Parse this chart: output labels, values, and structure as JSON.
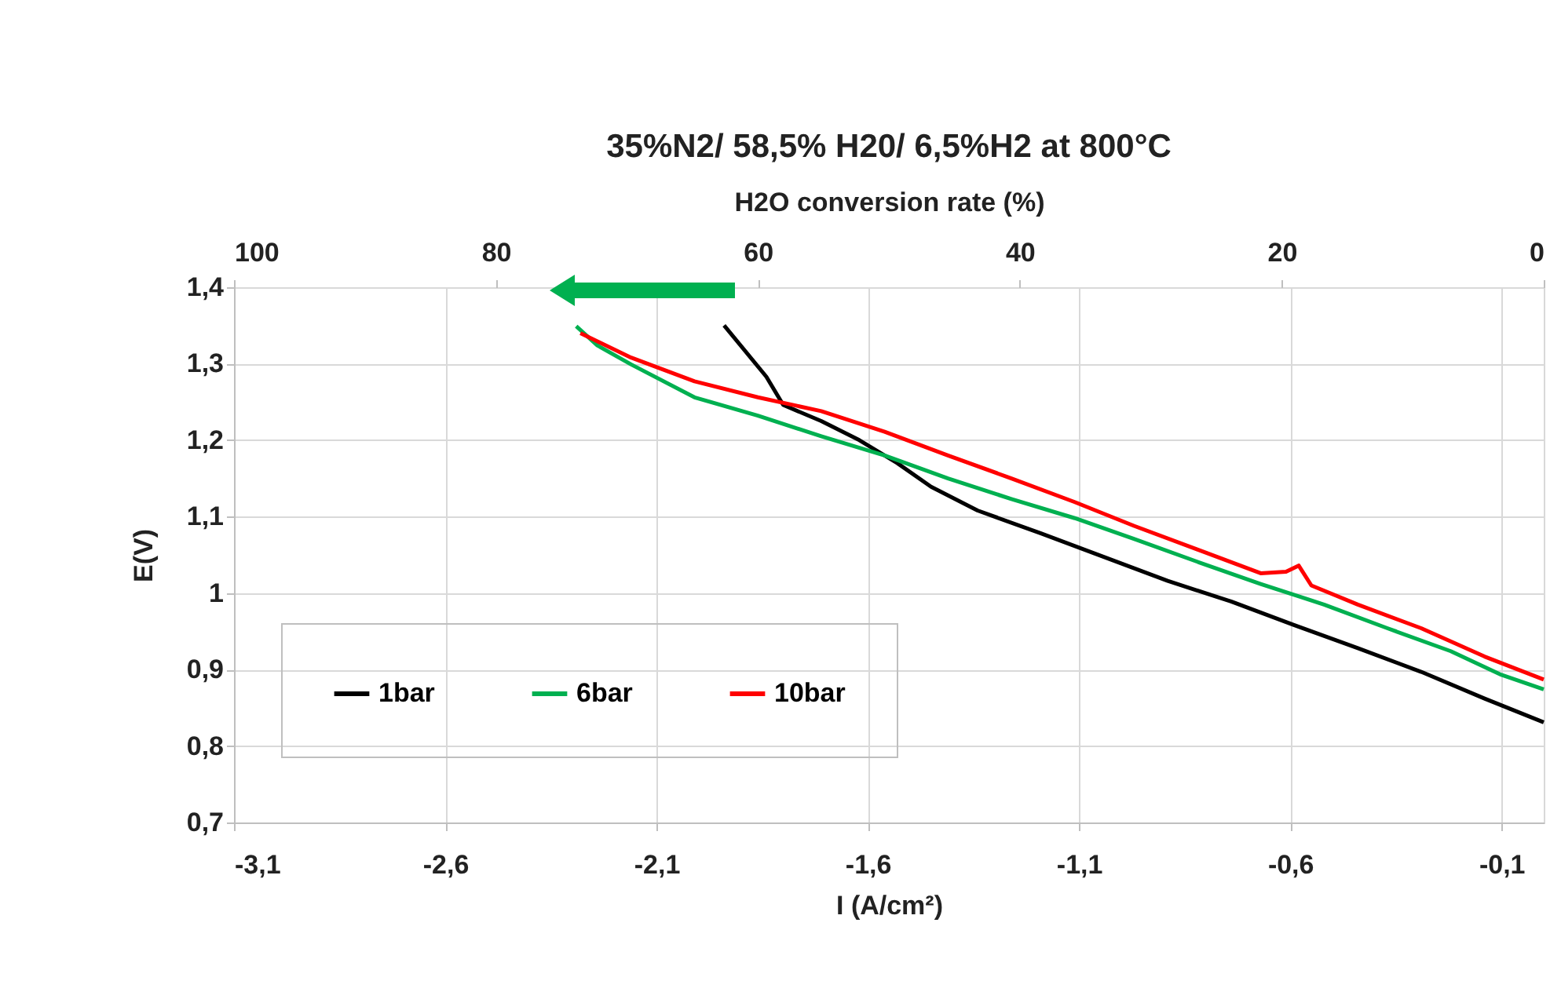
{
  "chart_data": {
    "type": "line",
    "title": "35%N2/ 58,5% H20/ 6,5%H2 at 800°C",
    "xlabel": "I (A/cm²)",
    "ylabel": "E(V)",
    "x2label": "H2O conversion rate (%)",
    "xlim": [
      -3.1,
      0
    ],
    "xticks": [
      {
        "value": -3.1,
        "label": "-3,1"
      },
      {
        "value": -2.6,
        "label": "-2,6"
      },
      {
        "value": -2.1,
        "label": "-2,1"
      },
      {
        "value": -1.6,
        "label": "-1,6"
      },
      {
        "value": -1.1,
        "label": "-1,1"
      },
      {
        "value": -0.6,
        "label": "-0,6"
      },
      {
        "value": -0.1,
        "label": "-0,1"
      }
    ],
    "x2lim": [
      100,
      0
    ],
    "x2ticks": [
      100,
      80,
      60,
      40,
      20,
      0
    ],
    "ylim": [
      0.7,
      1.4
    ],
    "yticks": [
      {
        "value": 0.7,
        "label": "0,7"
      },
      {
        "value": 0.8,
        "label": "0,8"
      },
      {
        "value": 0.9,
        "label": "0,9"
      },
      1,
      {
        "value": 1.1,
        "label": "1,1"
      },
      {
        "value": 1.2,
        "label": "1,2"
      },
      {
        "value": 1.3,
        "label": "1,3"
      },
      {
        "value": 1.4,
        "label": "1,4"
      }
    ],
    "grid": true,
    "legend": "bottom left",
    "line_style": "solid",
    "marker": "none",
    "series": [
      {
        "name": "1bar",
        "color": "#000000",
        "x": [
          -1.94,
          -1.84,
          -1.8,
          -1.71,
          -1.62,
          -1.53,
          -1.45,
          -1.34,
          -1.19,
          -1.04,
          -0.89,
          -0.74,
          -0.59,
          -0.44,
          -0.29,
          -0.14,
          0
        ],
        "values": [
          1.35,
          1.283,
          1.246,
          1.225,
          1.2,
          1.17,
          1.139,
          1.108,
          1.078,
          1.047,
          1.016,
          0.989,
          0.958,
          0.928,
          0.897,
          0.862,
          0.831
        ]
      },
      {
        "name": "6bar",
        "color": "#00b050",
        "x": [
          -2.29,
          -2.24,
          -2.16,
          -2.01,
          -1.86,
          -1.71,
          -1.56,
          -1.41,
          -1.26,
          -1.11,
          -0.97,
          -0.82,
          -0.67,
          -0.52,
          -0.37,
          -0.22,
          -0.1,
          0
        ],
        "values": [
          1.349,
          1.324,
          1.299,
          1.256,
          1.232,
          1.205,
          1.18,
          1.15,
          1.123,
          1.098,
          1.071,
          1.041,
          1.012,
          0.985,
          0.954,
          0.924,
          0.893,
          0.874
        ]
      },
      {
        "name": "10bar",
        "color": "#ff0000",
        "x": [
          -2.28,
          -2.16,
          -2.01,
          -1.86,
          -1.71,
          -1.56,
          -1.41,
          -1.26,
          -1.11,
          -0.97,
          -0.82,
          -0.67,
          -0.61,
          -0.58,
          -0.55,
          -0.44,
          -0.29,
          -0.14,
          0
        ],
        "values": [
          1.34,
          1.308,
          1.277,
          1.256,
          1.238,
          1.211,
          1.18,
          1.15,
          1.119,
          1.088,
          1.057,
          1.026,
          1.028,
          1.036,
          1.01,
          0.985,
          0.954,
          0.917,
          0.887
        ]
      }
    ]
  }
}
